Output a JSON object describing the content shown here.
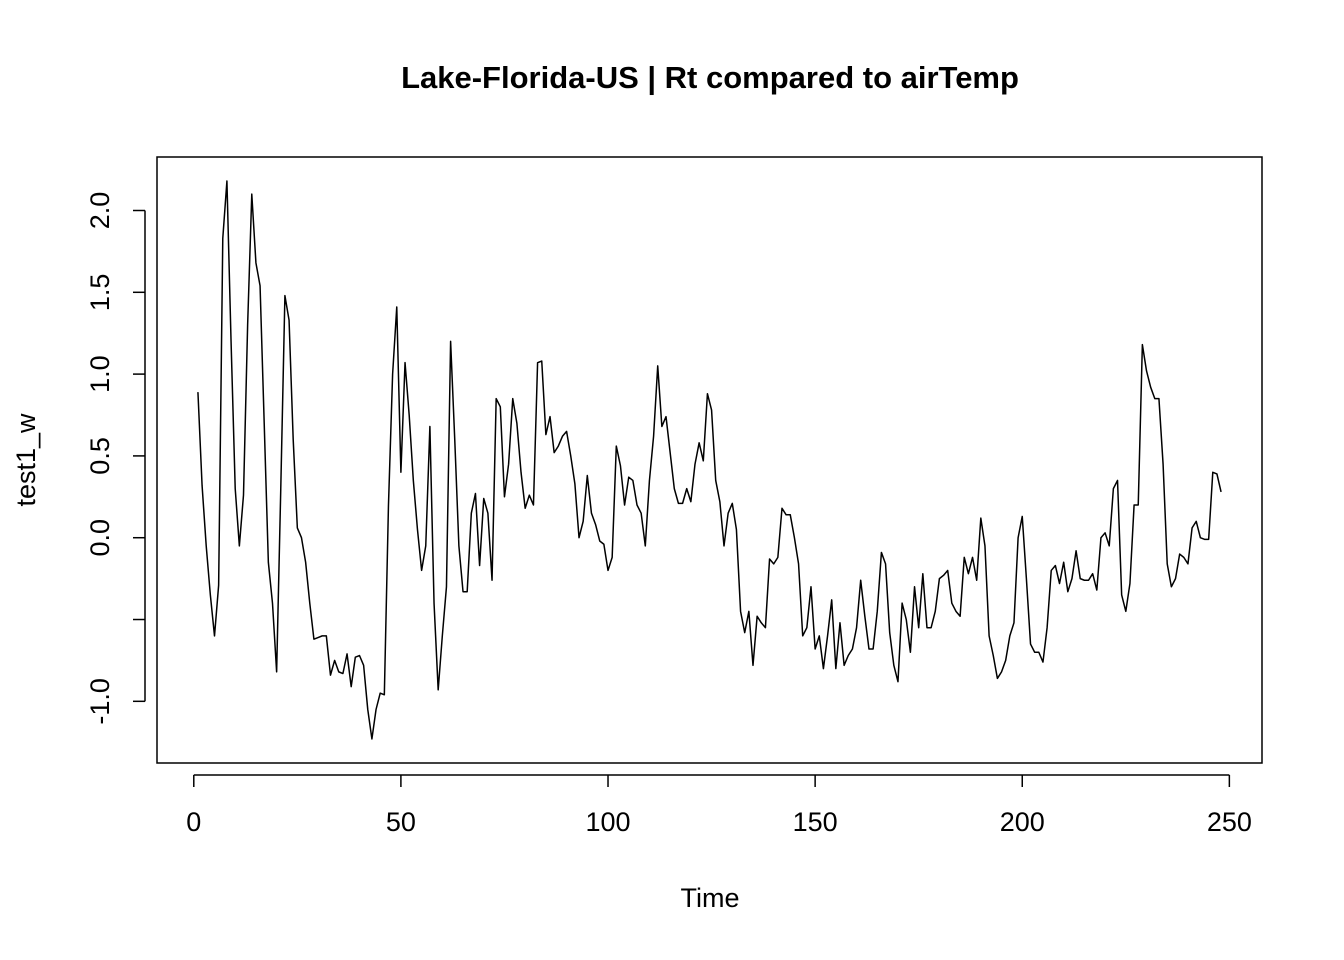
{
  "chart_data": {
    "type": "line",
    "title": "Lake-Florida-US | Rt compared to airTemp",
    "xlabel": "Time",
    "ylabel": "test1_w",
    "x": [
      1,
      2,
      3,
      4,
      5,
      6,
      7,
      8,
      9,
      10,
      11,
      12,
      13,
      14,
      15,
      16,
      17,
      18,
      19,
      20,
      21,
      22,
      23,
      24,
      25,
      26,
      27,
      28,
      29,
      30,
      31,
      32,
      33,
      34,
      35,
      36,
      37,
      38,
      39,
      40,
      41,
      42,
      43,
      44,
      45,
      46,
      47,
      48,
      49,
      50,
      51,
      52,
      53,
      54,
      55,
      56,
      57,
      58,
      59,
      60,
      61,
      62,
      63,
      64,
      65,
      66,
      67,
      68,
      69,
      70,
      71,
      72,
      73,
      74,
      75,
      76,
      77,
      78,
      79,
      80,
      81,
      82,
      83,
      84,
      85,
      86,
      87,
      88,
      89,
      90,
      91,
      92,
      93,
      94,
      95,
      96,
      97,
      98,
      99,
      100,
      101,
      102,
      103,
      104,
      105,
      106,
      107,
      108,
      109,
      110,
      111,
      112,
      113,
      114,
      115,
      116,
      117,
      118,
      119,
      120,
      121,
      122,
      123,
      124,
      125,
      126,
      127,
      128,
      129,
      130,
      131,
      132,
      133,
      134,
      135,
      136,
      137,
      138,
      139,
      140,
      141,
      142,
      143,
      144,
      145,
      146,
      147,
      148,
      149,
      150,
      151,
      152,
      153,
      154,
      155,
      156,
      157,
      158,
      159,
      160,
      161,
      162,
      163,
      164,
      165,
      166,
      167,
      168,
      169,
      170,
      171,
      172,
      173,
      174,
      175,
      176,
      177,
      178,
      179,
      180,
      181,
      182,
      183,
      184,
      185,
      186,
      187,
      188,
      189,
      190,
      191,
      192,
      193,
      194,
      195,
      196,
      197,
      198,
      199,
      200,
      201,
      202,
      203,
      204,
      205,
      206,
      207,
      208,
      209,
      210,
      211,
      212,
      213,
      214,
      215,
      216,
      217,
      218,
      219,
      220,
      221,
      222,
      223,
      224,
      225,
      226,
      227,
      228,
      229,
      230,
      231,
      232,
      233,
      234,
      235,
      236,
      237,
      238,
      239,
      240,
      241,
      242,
      243,
      244,
      245,
      246,
      247,
      248
    ],
    "series": [
      {
        "name": "test1_w",
        "color": "#000000",
        "values": [
          0.89,
          0.32,
          -0.05,
          -0.35,
          -0.6,
          -0.29,
          1.83,
          2.18,
          1.2,
          0.3,
          -0.05,
          0.26,
          1.3,
          2.1,
          1.68,
          1.54,
          0.7,
          -0.15,
          -0.4,
          -0.82,
          0.3,
          1.48,
          1.33,
          0.6,
          0.06,
          0.0,
          -0.15,
          -0.4,
          -0.62,
          -0.61,
          -0.6,
          -0.6,
          -0.84,
          -0.75,
          -0.82,
          -0.83,
          -0.71,
          -0.91,
          -0.73,
          -0.72,
          -0.78,
          -1.05,
          -1.23,
          -1.05,
          -0.95,
          -0.96,
          0.2,
          1.0,
          1.41,
          0.4,
          1.07,
          0.75,
          0.35,
          0.05,
          -0.2,
          -0.05,
          0.68,
          -0.4,
          -0.93,
          -0.6,
          -0.3,
          1.2,
          0.6,
          -0.05,
          -0.33,
          -0.33,
          0.15,
          0.27,
          -0.17,
          0.24,
          0.15,
          -0.26,
          0.85,
          0.8,
          0.25,
          0.45,
          0.85,
          0.7,
          0.4,
          0.18,
          0.26,
          0.2,
          1.07,
          1.08,
          0.63,
          0.74,
          0.52,
          0.56,
          0.62,
          0.65,
          0.5,
          0.33,
          0.0,
          0.1,
          0.38,
          0.15,
          0.08,
          -0.02,
          -0.04,
          -0.2,
          -0.12,
          0.56,
          0.44,
          0.2,
          0.37,
          0.35,
          0.2,
          0.15,
          -0.05,
          0.35,
          0.62,
          1.05,
          0.68,
          0.74,
          0.52,
          0.3,
          0.21,
          0.21,
          0.3,
          0.22,
          0.45,
          0.58,
          0.47,
          0.88,
          0.78,
          0.35,
          0.22,
          -0.05,
          0.15,
          0.21,
          0.05,
          -0.45,
          -0.58,
          -0.45,
          -0.78,
          -0.48,
          -0.52,
          -0.55,
          -0.13,
          -0.16,
          -0.12,
          0.18,
          0.14,
          0.14,
          0.0,
          -0.16,
          -0.6,
          -0.55,
          -0.3,
          -0.68,
          -0.6,
          -0.8,
          -0.6,
          -0.38,
          -0.8,
          -0.52,
          -0.78,
          -0.72,
          -0.68,
          -0.55,
          -0.26,
          -0.48,
          -0.68,
          -0.68,
          -0.45,
          -0.09,
          -0.16,
          -0.58,
          -0.78,
          -0.88,
          -0.4,
          -0.5,
          -0.7,
          -0.3,
          -0.55,
          -0.22,
          -0.55,
          -0.55,
          -0.45,
          -0.25,
          -0.23,
          -0.2,
          -0.4,
          -0.45,
          -0.48,
          -0.12,
          -0.22,
          -0.12,
          -0.26,
          0.12,
          -0.05,
          -0.6,
          -0.72,
          -0.86,
          -0.82,
          -0.75,
          -0.6,
          -0.52,
          0.0,
          0.13,
          -0.25,
          -0.65,
          -0.7,
          -0.7,
          -0.76,
          -0.55,
          -0.2,
          -0.17,
          -0.28,
          -0.15,
          -0.33,
          -0.25,
          -0.08,
          -0.25,
          -0.26,
          -0.26,
          -0.22,
          -0.32,
          0.0,
          0.03,
          -0.05,
          0.3,
          0.35,
          -0.35,
          -0.45,
          -0.28,
          0.2,
          0.2,
          1.18,
          1.02,
          0.92,
          0.85,
          0.85,
          0.45,
          -0.16,
          -0.3,
          -0.25,
          -0.1,
          -0.12,
          -0.16,
          0.06,
          0.1,
          0.0,
          -0.01,
          -0.01,
          0.4,
          0.39,
          0.28
        ]
      }
    ],
    "xlim": [
      -8.88,
      257.88
    ],
    "ylim": [
      -1.377,
      2.327
    ],
    "xticks": [
      0,
      50,
      100,
      150,
      200,
      250
    ],
    "yticks": [
      {
        "value": -1,
        "label": "-1.0"
      },
      {
        "value": -0.5,
        "label": null
      },
      {
        "value": 0,
        "label": "0.0"
      },
      0.5,
      {
        "value": 1,
        "label": "1.0"
      },
      1.5,
      {
        "value": 2,
        "label": "2.0"
      }
    ],
    "grid": false
  }
}
